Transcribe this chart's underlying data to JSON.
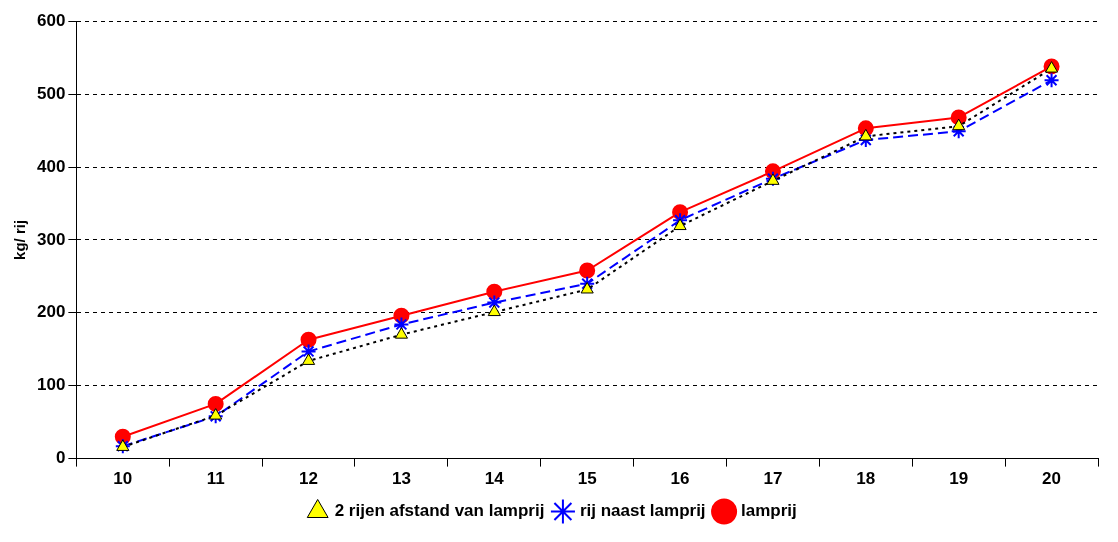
{
  "chart_data": {
    "type": "line",
    "ylabel": "kg/ rij",
    "categories": [
      "10",
      "11",
      "12",
      "13",
      "14",
      "15",
      "16",
      "17",
      "18",
      "19",
      "20"
    ],
    "ylim": [
      0,
      600
    ],
    "yticks": [
      0,
      100,
      200,
      300,
      400,
      500,
      600
    ],
    "grid": "y",
    "legend": "bottom",
    "series": [
      {
        "name": "lamprij",
        "color": "#ff0000",
        "marker": "circle",
        "line_style": "solid",
        "values": [
          30,
          75,
          163,
          196,
          229,
          258,
          338,
          394,
          453,
          468,
          538
        ]
      },
      {
        "name": "rij naast lamprij",
        "color": "#0000ff",
        "marker": "cross",
        "line_style": "dashed",
        "values": [
          17,
          58,
          147,
          184,
          214,
          240,
          327,
          384,
          437,
          449,
          519
        ]
      },
      {
        "name": "2 rijen afstand van lamprij",
        "color": "#000000",
        "marker": "triangle",
        "line_style": "dotted",
        "values": [
          16,
          59,
          134,
          170,
          201,
          232,
          319,
          381,
          442,
          456,
          535
        ]
      }
    ]
  }
}
